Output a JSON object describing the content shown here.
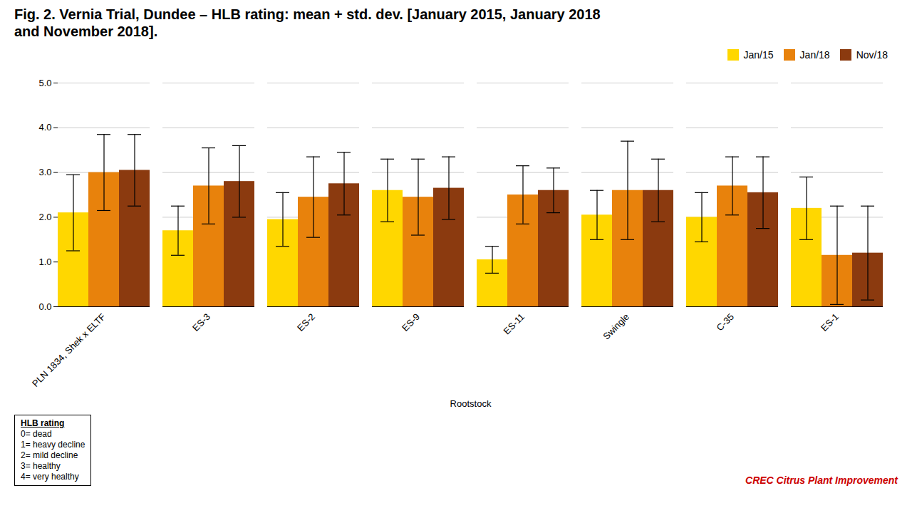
{
  "chart_data": {
    "type": "bar",
    "title": "Fig. 2. Vernia Trial, Dundee – HLB rating: mean + std. dev. [January 2015, January 2018\nand November 2018].",
    "xlabel": "Rootstock",
    "categories": [
      "PLN 1834, Shek x ELTF",
      "ES-3",
      "ES-2",
      "ES-9",
      "ES-11",
      "Swingle",
      "C-35",
      "ES-1"
    ],
    "series": [
      {
        "name": "Jan/15",
        "color": "#FFD700",
        "values": [
          2.1,
          1.7,
          1.95,
          2.6,
          1.05,
          2.05,
          2.0,
          2.2
        ],
        "errors": [
          0.85,
          0.55,
          0.6,
          0.7,
          0.3,
          0.55,
          0.55,
          0.7
        ]
      },
      {
        "name": "Jan/18",
        "color": "#E8820C",
        "values": [
          3.0,
          2.7,
          2.45,
          2.45,
          2.5,
          2.6,
          2.7,
          1.15
        ],
        "errors": [
          0.85,
          0.85,
          0.9,
          0.85,
          0.65,
          1.1,
          0.65,
          1.1
        ]
      },
      {
        "name": "Nov/18",
        "color": "#8B3A0F",
        "values": [
          3.05,
          2.8,
          2.75,
          2.65,
          2.6,
          2.6,
          2.55,
          1.2
        ],
        "errors": [
          0.8,
          0.8,
          0.7,
          0.7,
          0.5,
          0.7,
          0.8,
          1.05
        ]
      }
    ],
    "ylim": [
      0,
      5
    ],
    "yticks": [
      0,
      1,
      2,
      3,
      4,
      5
    ],
    "grid": true,
    "legend": "upper right",
    "annotations": [
      {
        "text": "CREC Citrus Plant Improvement",
        "color": "#CC0000"
      },
      {
        "title": "HLB rating",
        "lines": [
          "0= dead",
          "1= heavy decline",
          "2= mild decline",
          "3= healthy",
          "4= very healthy"
        ]
      }
    ]
  }
}
